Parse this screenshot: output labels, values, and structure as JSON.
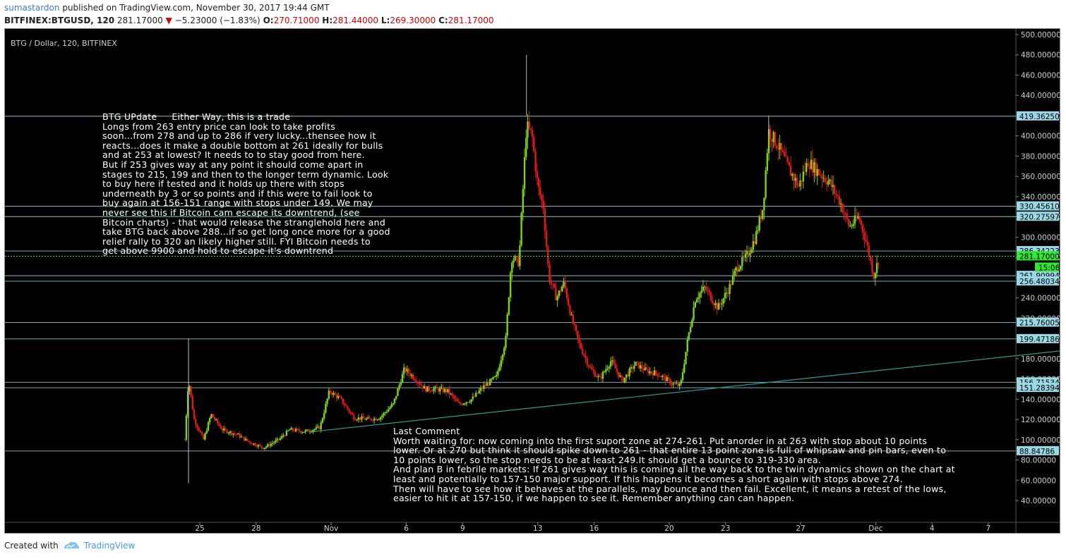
{
  "header": {
    "publisher": "sumastardon",
    "published_text": "published on TradingView.com, November 30, 2017 19:44 GMT",
    "symbol": "BITFINEX:BTGUSD, 120",
    "last_price": "281.17000",
    "change_arrow": "▼",
    "change": "−5.23000 (−1.83%)",
    "open_label": "O:",
    "open": "270.71000",
    "high_label": "H:",
    "high": "281.44000",
    "low_label": "L:",
    "low": "269.30000",
    "close_label": "C:",
    "close": "281.17000"
  },
  "chart_data": {
    "type": "candlestick",
    "title": "BTG / Dollar, 120, BITFINEX",
    "ylim": [
      30,
      503
    ],
    "yticks": [
      "500.00000",
      "480.00000",
      "460.00000",
      "440.00000",
      "420.00000",
      "400.00000",
      "380.00000",
      "360.00000",
      "340.00000",
      "320.00000",
      "300.00000",
      "280.00000",
      "260.00000",
      "240.00000",
      "220.00000",
      "200.00000",
      "180.00000",
      "160.00000",
      "140.00000",
      "120.00000",
      "100.00000",
      "80.00000",
      "60.00000",
      "40.00000"
    ],
    "ytick_values": [
      500,
      480,
      460,
      440,
      420,
      400,
      380,
      360,
      340,
      320,
      300,
      280,
      260,
      240,
      220,
      200,
      180,
      160,
      140,
      120,
      100,
      80,
      60,
      40
    ],
    "xticks": [
      "25",
      "28",
      "Nov",
      "6",
      "9",
      "13",
      "16",
      "20",
      "23",
      "27",
      "Dec",
      "4",
      "7"
    ],
    "xtick_days": [
      25,
      28,
      32,
      36,
      39,
      43,
      46,
      50,
      53,
      57,
      61,
      64,
      67
    ],
    "horizontal_levels": [
      {
        "value": 419.3625,
        "label": "419.36250"
      },
      {
        "value": 330.4561,
        "label": "330.45610"
      },
      {
        "value": 320.27597,
        "label": "320.27597"
      },
      {
        "value": 286.34223,
        "label": "286.34223"
      },
      {
        "value": 261.90994,
        "label": "261.90994"
      },
      {
        "value": 256.48034,
        "label": "256.48034"
      },
      {
        "value": 215.76005,
        "label": "215.76005"
      },
      {
        "value": 199.47186,
        "label": "199.47186"
      },
      {
        "value": 156.71534,
        "label": "156.71534"
      },
      {
        "value": 151.28394,
        "label": "151.28394"
      },
      {
        "value": 88.84786,
        "label": "88.84786"
      }
    ],
    "current_price": {
      "value": 281.17,
      "label": "281.17000",
      "countdown": "15:06"
    },
    "trendline": {
      "start_day": 31,
      "start_value": 108,
      "end_day": 71,
      "end_value": 188
    },
    "series_path": [
      {
        "day": 24.2,
        "price": 100
      },
      {
        "day": 24.4,
        "price": 160
      },
      {
        "day": 24.7,
        "price": 120
      },
      {
        "day": 25.2,
        "price": 100
      },
      {
        "day": 25.6,
        "price": 125
      },
      {
        "day": 26.2,
        "price": 110
      },
      {
        "day": 27.0,
        "price": 105
      },
      {
        "day": 27.6,
        "price": 98
      },
      {
        "day": 28.4,
        "price": 92
      },
      {
        "day": 29.2,
        "price": 100
      },
      {
        "day": 29.8,
        "price": 110
      },
      {
        "day": 30.6,
        "price": 108
      },
      {
        "day": 31.4,
        "price": 112
      },
      {
        "day": 31.9,
        "price": 148
      },
      {
        "day": 32.5,
        "price": 140
      },
      {
        "day": 33.2,
        "price": 122
      },
      {
        "day": 34.0,
        "price": 120
      },
      {
        "day": 34.6,
        "price": 122
      },
      {
        "day": 35.3,
        "price": 135
      },
      {
        "day": 35.9,
        "price": 170
      },
      {
        "day": 36.5,
        "price": 160
      },
      {
        "day": 37.0,
        "price": 150
      },
      {
        "day": 37.6,
        "price": 150
      },
      {
        "day": 38.2,
        "price": 148
      },
      {
        "day": 38.8,
        "price": 135
      },
      {
        "day": 39.5,
        "price": 140
      },
      {
        "day": 40.1,
        "price": 152
      },
      {
        "day": 40.8,
        "price": 162
      },
      {
        "day": 41.3,
        "price": 200
      },
      {
        "day": 41.6,
        "price": 280
      },
      {
        "day": 42.0,
        "price": 275
      },
      {
        "day": 42.4,
        "price": 410
      },
      {
        "day": 42.7,
        "price": 400
      },
      {
        "day": 43.0,
        "price": 350
      },
      {
        "day": 43.3,
        "price": 330
      },
      {
        "day": 43.6,
        "price": 260
      },
      {
        "day": 44.0,
        "price": 240
      },
      {
        "day": 44.4,
        "price": 255
      },
      {
        "day": 44.8,
        "price": 220
      },
      {
        "day": 45.2,
        "price": 195
      },
      {
        "day": 45.8,
        "price": 170
      },
      {
        "day": 46.3,
        "price": 160
      },
      {
        "day": 46.9,
        "price": 178
      },
      {
        "day": 47.5,
        "price": 158
      },
      {
        "day": 48.2,
        "price": 175
      },
      {
        "day": 48.8,
        "price": 168
      },
      {
        "day": 49.4,
        "price": 165
      },
      {
        "day": 50.2,
        "price": 155
      },
      {
        "day": 50.6,
        "price": 153
      },
      {
        "day": 51.0,
        "price": 200
      },
      {
        "day": 51.4,
        "price": 240
      },
      {
        "day": 51.9,
        "price": 250
      },
      {
        "day": 52.6,
        "price": 230
      },
      {
        "day": 53.2,
        "price": 250
      },
      {
        "day": 53.6,
        "price": 270
      },
      {
        "day": 54.1,
        "price": 280
      },
      {
        "day": 54.6,
        "price": 300
      },
      {
        "day": 55.0,
        "price": 330
      },
      {
        "day": 55.3,
        "price": 405
      },
      {
        "day": 55.8,
        "price": 390
      },
      {
        "day": 56.3,
        "price": 370
      },
      {
        "day": 56.9,
        "price": 350
      },
      {
        "day": 57.4,
        "price": 375
      },
      {
        "day": 57.9,
        "price": 365
      },
      {
        "day": 58.5,
        "price": 355
      },
      {
        "day": 59.1,
        "price": 335
      },
      {
        "day": 59.6,
        "price": 310
      },
      {
        "day": 60.1,
        "price": 320
      },
      {
        "day": 60.5,
        "price": 295
      },
      {
        "day": 60.9,
        "price": 262
      },
      {
        "day": 61.2,
        "price": 281
      }
    ],
    "notes": [
      {
        "lines": [
          "BTG UPdate     Either Way, this is a trade",
          "Longs from 263 entry price can look to take profits",
          "soon...from 278 and up to 286 if very lucky...thensee how it",
          "reacts...does it make a double bottom at 261 ideally for bulls",
          "and at 253 at lowest? It needs to to stay good from here.",
          "But if 253 gives way at any point it should come apart in",
          "stages to 215, 199 and then to the longer term dynamic. Look",
          "to buy here if tested and it holds up there with stops",
          "underneath by 3 or so points and if this were to fail look to",
          "buy again at 156-151 range with stops under 149. We may",
          "never see this if Bitcoin cam escape its downtrend, (see",
          "Bitcoin charts) - that would release the stranglehold here and",
          "take BTG back above 288...if so get long once more for a good",
          "relief rally to 320 an likely higher still. FYI Bitcoin needs to",
          "get above 9900 and hold to escape it's downtrend"
        ]
      },
      {
        "lines": [
          "Last Comment",
          "Worth waiting for: now coming into the first suport zone at 274-261. Put anorder in at 263 with stop about 10 points",
          "lower. Or at 270 but think it should spike down to 261 - that entire 13 point zone is full of whipsaw and pin bars, even to",
          "10 points lower, so the stop needs to be at least 249.It should get a bounce to 319-330 area.",
          "And plan B in febrile markets: If 261 gives way this is coming all the way back to the twin dynamics shown on the chart at",
          "least and potentially to 157-150 major support. If this happens it becomes a short again with stops above 274.",
          "Then will have to see how it behaves at the parallels, may bounce and then fail. Excellent, it means a retest of the lows,",
          "easier to hit it at 157-150, if we happen to see it. Remember anything can can happen."
        ]
      }
    ]
  },
  "footer": {
    "created_with": "Created with",
    "brand": "TradingView"
  },
  "colors": {
    "background": "#000000",
    "up": "#7ed321",
    "down": "#e01b1b",
    "level_line": "#9ad8e6",
    "level_label_bg": "#9ad8e6",
    "price_label_bg": "#33e633",
    "trendline": "#2a9d8f"
  }
}
